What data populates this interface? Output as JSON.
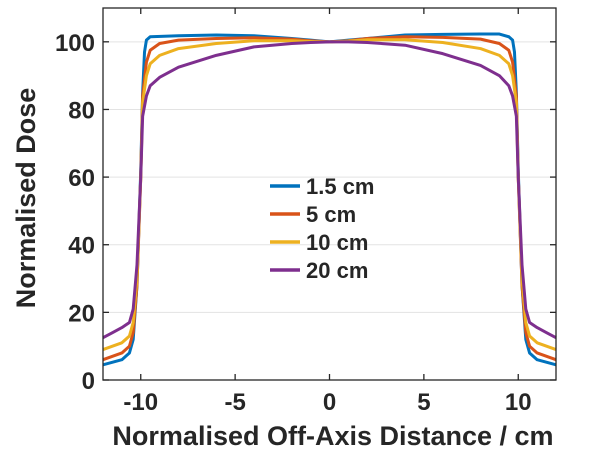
{
  "chart_data": {
    "type": "line",
    "title": "",
    "xlabel": "Normalised Off-Axis Distance / cm",
    "ylabel": "Normalised Dose",
    "xlim": [
      -12,
      12
    ],
    "ylim": [
      0,
      110
    ],
    "xticks": [
      -10,
      -5,
      0,
      5,
      10
    ],
    "xtick_labels": [
      "-10",
      "-5",
      "0",
      "5",
      "10"
    ],
    "yticks": [
      0,
      20,
      40,
      60,
      80,
      100
    ],
    "ytick_labels": [
      "0",
      "20",
      "40",
      "60",
      "80",
      "100"
    ],
    "grid": true,
    "legend_position": "center",
    "series": [
      {
        "name": "1.5 cm",
        "color": "#0072BD",
        "points": [
          [
            -12,
            4.5
          ],
          [
            -11,
            6
          ],
          [
            -10.6,
            8
          ],
          [
            -10.4,
            12
          ],
          [
            -10.2,
            28
          ],
          [
            -10.0,
            62
          ],
          [
            -9.9,
            85
          ],
          [
            -9.8,
            97
          ],
          [
            -9.7,
            100.5
          ],
          [
            -9.5,
            101.5
          ],
          [
            -8,
            101.8
          ],
          [
            -6,
            102
          ],
          [
            -4,
            101.8
          ],
          [
            -2,
            101
          ],
          [
            -1,
            100.5
          ],
          [
            0,
            100
          ],
          [
            1,
            100.5
          ],
          [
            2,
            101
          ],
          [
            4,
            102
          ],
          [
            6,
            102.2
          ],
          [
            8,
            102.3
          ],
          [
            9,
            102.3
          ],
          [
            9.5,
            101.5
          ],
          [
            9.7,
            100.5
          ],
          [
            9.8,
            97
          ],
          [
            9.9,
            85
          ],
          [
            10.0,
            62
          ],
          [
            10.2,
            28
          ],
          [
            10.4,
            12
          ],
          [
            10.6,
            8
          ],
          [
            11,
            6
          ],
          [
            12,
            4.5
          ]
        ]
      },
      {
        "name": "   5 cm",
        "color": "#D95319",
        "points": [
          [
            -12,
            6
          ],
          [
            -11,
            8
          ],
          [
            -10.6,
            10
          ],
          [
            -10.4,
            14
          ],
          [
            -10.2,
            28
          ],
          [
            -10.0,
            60
          ],
          [
            -9.9,
            84
          ],
          [
            -9.7,
            94
          ],
          [
            -9.5,
            97.5
          ],
          [
            -9,
            99.5
          ],
          [
            -8,
            100.5
          ],
          [
            -6,
            101
          ],
          [
            -4,
            101.2
          ],
          [
            -2,
            100.8
          ],
          [
            -1,
            100.3
          ],
          [
            0,
            100
          ],
          [
            1,
            100.3
          ],
          [
            2,
            101
          ],
          [
            4,
            101.5
          ],
          [
            6,
            101.3
          ],
          [
            8,
            100.8
          ],
          [
            9,
            99.5
          ],
          [
            9.5,
            97.5
          ],
          [
            9.7,
            94
          ],
          [
            9.9,
            84
          ],
          [
            10.0,
            60
          ],
          [
            10.2,
            28
          ],
          [
            10.4,
            14
          ],
          [
            10.6,
            10
          ],
          [
            11,
            8
          ],
          [
            12,
            6
          ]
        ]
      },
      {
        "name": "10 cm",
        "color": "#EDB120",
        "points": [
          [
            -12,
            9
          ],
          [
            -11,
            11
          ],
          [
            -10.6,
            13
          ],
          [
            -10.4,
            17
          ],
          [
            -10.2,
            30
          ],
          [
            -10.0,
            60
          ],
          [
            -9.9,
            82
          ],
          [
            -9.7,
            90
          ],
          [
            -9.5,
            93.5
          ],
          [
            -9,
            96
          ],
          [
            -8,
            98
          ],
          [
            -6,
            99.5
          ],
          [
            -4,
            100.3
          ],
          [
            -2,
            100.3
          ],
          [
            -1,
            100.1
          ],
          [
            0,
            100
          ],
          [
            1,
            100.2
          ],
          [
            2,
            100.6
          ],
          [
            4,
            100.6
          ],
          [
            6,
            99.8
          ],
          [
            8,
            98
          ],
          [
            9,
            96
          ],
          [
            9.5,
            93.5
          ],
          [
            9.7,
            90
          ],
          [
            9.9,
            82
          ],
          [
            10.0,
            60
          ],
          [
            10.2,
            30
          ],
          [
            10.4,
            17
          ],
          [
            10.6,
            13
          ],
          [
            11,
            11
          ],
          [
            12,
            9
          ]
        ]
      },
      {
        "name": "20 cm",
        "color": "#7E2F8E",
        "points": [
          [
            -12,
            12.5
          ],
          [
            -11.5,
            14
          ],
          [
            -11,
            15.5
          ],
          [
            -10.6,
            17
          ],
          [
            -10.4,
            21
          ],
          [
            -10.2,
            34
          ],
          [
            -10.0,
            60
          ],
          [
            -9.9,
            78
          ],
          [
            -9.7,
            84
          ],
          [
            -9.5,
            87
          ],
          [
            -9,
            89.5
          ],
          [
            -8,
            92.5
          ],
          [
            -6,
            96
          ],
          [
            -4,
            98.5
          ],
          [
            -2,
            99.5
          ],
          [
            -1,
            99.8
          ],
          [
            0,
            100
          ],
          [
            1,
            100
          ],
          [
            2,
            99.8
          ],
          [
            4,
            99
          ],
          [
            6,
            96.5
          ],
          [
            8,
            93
          ],
          [
            9,
            90
          ],
          [
            9.5,
            87
          ],
          [
            9.7,
            84
          ],
          [
            9.9,
            78
          ],
          [
            10.0,
            60
          ],
          [
            10.2,
            34
          ],
          [
            10.4,
            21
          ],
          [
            10.6,
            17
          ],
          [
            11,
            15.5
          ],
          [
            11.5,
            14
          ],
          [
            12,
            12.5
          ]
        ]
      }
    ]
  }
}
